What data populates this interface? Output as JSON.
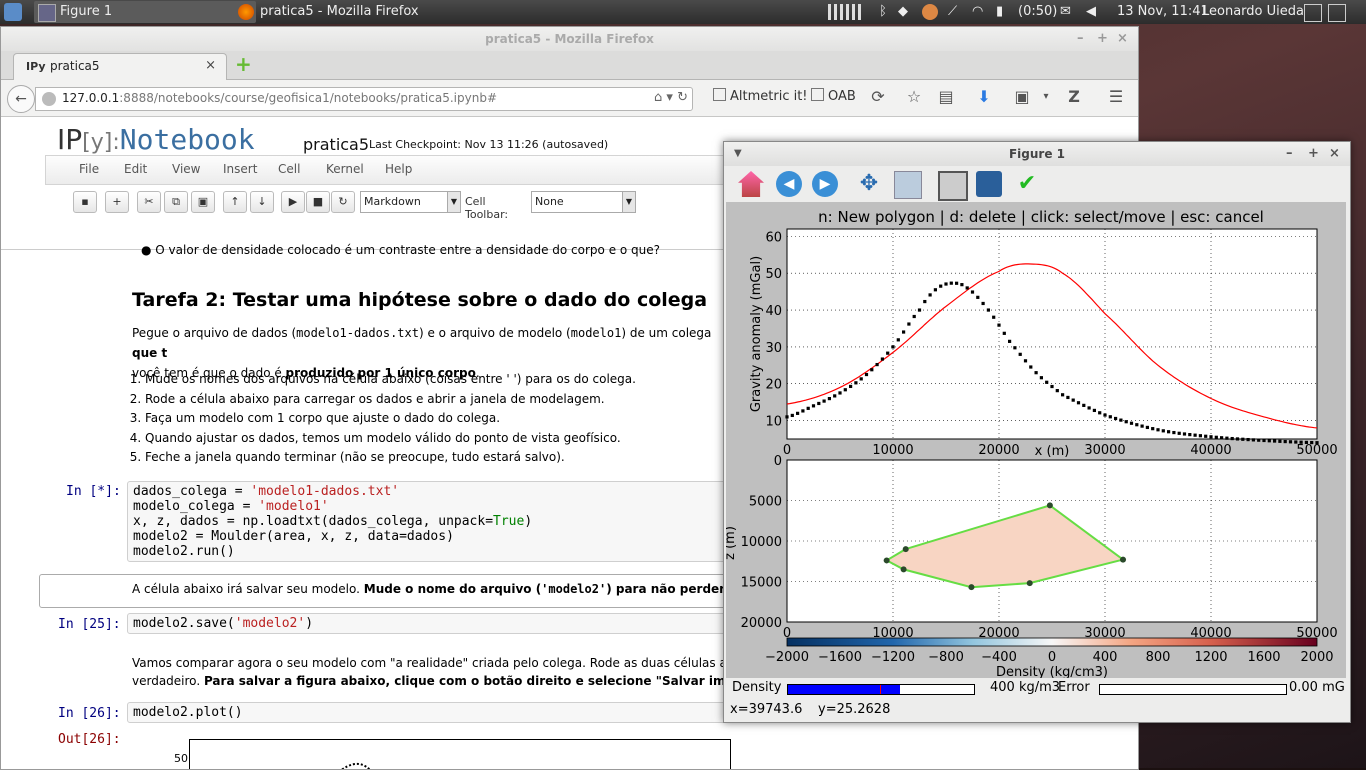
{
  "panel": {
    "tasks": [
      {
        "label": "Figure 1",
        "active": true
      },
      {
        "label": "pratica5 - Mozilla Firefox",
        "active": false
      }
    ],
    "battery": "(0:50)",
    "clock": "13 Nov, 11:41",
    "user": "Leonardo Uieda"
  },
  "firefox": {
    "window_title": "pratica5 - Mozilla Firefox",
    "tab": {
      "favicon": "IPy",
      "label": "pratica5"
    },
    "url_host": "127.0.0.1",
    "url_rest": ":8888/notebooks/course/geofisica1/notebooks/pratica5.ipynb#",
    "bookmarks": [
      "Altmetric it!",
      "OAB"
    ]
  },
  "notebook": {
    "logo_ip": "IP",
    "logo_y": "[y]:",
    "logo_word": "Notebook",
    "name": "pratica5",
    "checkpoint": "Last Checkpoint: Nov 13 11:26 (autosaved)",
    "menu": [
      "File",
      "Edit",
      "View",
      "Insert",
      "Cell",
      "Kernel",
      "Help"
    ],
    "cell_type": "Markdown",
    "cell_toolbar_label": "Cell Toolbar:",
    "cell_toolbar_value": "None",
    "bullet_cut": "O valor de densidade colocado é um contraste entre a densidade do corpo e o que?",
    "heading": "Tarefa 2: Testar uma hipótese sobre o dado do colega",
    "para1_a": "Pegue o arquivo de dados (",
    "para1_code1": "modelo1-dados.txt",
    "para1_b": ") e o arquivo de modelo (",
    "para1_code2": "modelo1",
    "para1_c": ") de um colega ",
    "para1_bold": "que t",
    "para1_line2_a": "você tem é que o dado é ",
    "para1_line2_bold": "produzido por 1 único corpo",
    "para1_line2_b": ".",
    "steps": [
      "Mude os nomes dos arquivos na célula abaixo (coisas entre ' ') para os do colega.",
      "Rode a célula abaixo para carregar os dados e abrir a janela de modelagem.",
      "Faça um modelo com 1 corpo que ajuste o dado do colega.",
      "Quando ajustar os dados, temos um modelo válido do ponto de vista geofísico.",
      "Feche a janela quando terminar (não se preocupe, tudo estará salvo)."
    ],
    "prompt1": "In [*]:",
    "prompt2": "In [25]:",
    "prompt3": "In [26]:",
    "prompt4": "Out[26]:",
    "save_text_a": "A célula abaixo irá salvar seu modelo. ",
    "save_text_bold": "Mude o nome do arquivo (",
    "save_text_code": "'modelo2'",
    "save_text_bold2": ") para não perder seus dad",
    "compare_line1": "Vamos comparar agora o seu modelo com \"a realidade\" criada pelo colega. Rode as duas células abaixo pa",
    "compare_line2_a": "verdadeiro. ",
    "compare_line2_bold": "Para salvar a figura abaixo, clique com o botão direito e selecione \"Salvar imagem\".",
    "out_ytick": "50"
  },
  "figure": {
    "window_title": "Figure 1",
    "plot_title": "n: New polygon | d: delete | click: select/move | esc: cancel",
    "density_label": "Density",
    "density_value": "400 kg/m3",
    "error_label": "Error",
    "error_value": "0.00 mG",
    "status_x": "x=39743.6",
    "status_y": "y=25.2628"
  },
  "chart_data": [
    {
      "type": "line",
      "xlabel": "x (m)",
      "ylabel": "Gravity anomaly (mGal)",
      "xlim": [
        0,
        50000
      ],
      "ylim": [
        5,
        62
      ],
      "xticks": [
        0,
        10000,
        20000,
        30000,
        40000,
        50000
      ],
      "yticks": [
        10,
        20,
        30,
        40,
        50,
        60
      ],
      "grid": true,
      "series": [
        {
          "style": "points",
          "color": "#000000",
          "x": [
            0,
            2500,
            5000,
            7500,
            10000,
            12500,
            14000,
            15500,
            17000,
            19000,
            21000,
            23500,
            26000,
            30000,
            35000,
            40000,
            45000,
            50000
          ],
          "y": [
            11,
            14,
            17.5,
            22.5,
            30,
            40,
            45.5,
            47.3,
            46,
            40,
            31.5,
            23,
            17,
            11.5,
            7.5,
            5.6,
            4.6,
            4
          ]
        },
        {
          "style": "line",
          "color": "#ff0000",
          "x": [
            0,
            5000,
            10000,
            15000,
            20000,
            23000,
            26000,
            30000,
            35000,
            40000,
            45000,
            50000
          ],
          "y": [
            14.5,
            19,
            28.5,
            41,
            50.5,
            52.5,
            50,
            39,
            25,
            16,
            11,
            8
          ]
        }
      ]
    },
    {
      "type": "polygon",
      "xlabel": "x (m)",
      "ylabel": "z (m)",
      "xlim": [
        0,
        50000
      ],
      "ylim": [
        0,
        20000
      ],
      "y_inverted": true,
      "xticks": [
        0,
        10000,
        20000,
        30000,
        40000,
        50000
      ],
      "yticks": [
        0,
        5000,
        10000,
        15000,
        20000
      ],
      "grid": true,
      "vertices": [
        [
          11200,
          11000
        ],
        [
          24800,
          5600
        ],
        [
          31700,
          12300
        ],
        [
          22900,
          15200
        ],
        [
          17400,
          15700
        ],
        [
          11000,
          13500
        ],
        [
          9400,
          12400
        ]
      ],
      "fill": "#f8d5c3",
      "edge": "#66dd44"
    },
    {
      "type": "colorbar",
      "label": "Density (kg/cm3)",
      "range": [
        -2000,
        2000
      ],
      "ticks": [
        -2000,
        -1600,
        -1200,
        -800,
        -400,
        0,
        400,
        800,
        1200,
        1600,
        2000
      ]
    }
  ]
}
